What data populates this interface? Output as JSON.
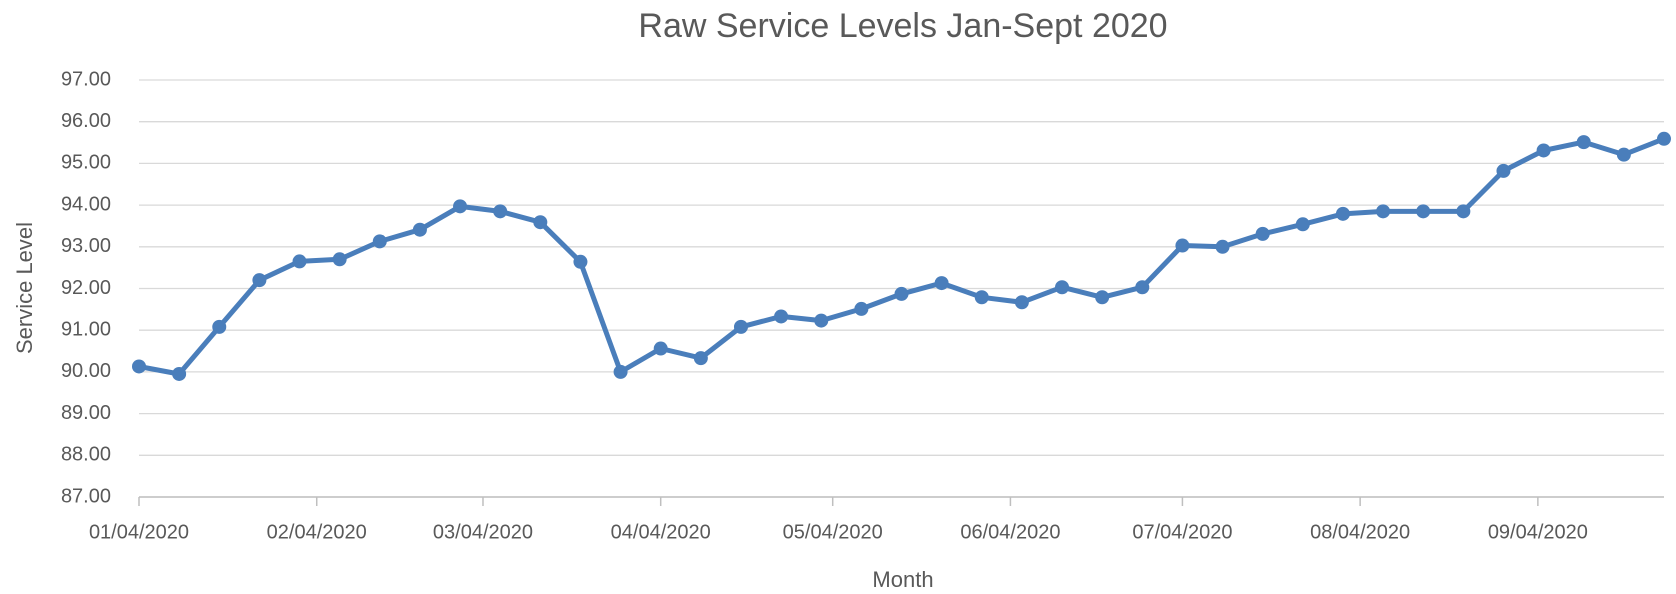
{
  "chart_data": {
    "type": "line",
    "title": "Raw Service Levels Jan-Sept 2020",
    "x_label": "Month",
    "y_label": "Service Level",
    "x": [
      "2020-01-04",
      "2020-01-11",
      "2020-01-18",
      "2020-01-25",
      "2020-02-01",
      "2020-02-08",
      "2020-02-15",
      "2020-02-22",
      "2020-02-29",
      "2020-03-07",
      "2020-03-14",
      "2020-03-21",
      "2020-03-28",
      "2020-04-04",
      "2020-04-11",
      "2020-04-18",
      "2020-04-25",
      "2020-05-02",
      "2020-05-09",
      "2020-05-16",
      "2020-05-23",
      "2020-05-30",
      "2020-06-06",
      "2020-06-13",
      "2020-06-20",
      "2020-06-27",
      "2020-07-04",
      "2020-07-11",
      "2020-07-18",
      "2020-07-25",
      "2020-08-01",
      "2020-08-08",
      "2020-08-15",
      "2020-08-22",
      "2020-08-29",
      "2020-09-05",
      "2020-09-12",
      "2020-09-19",
      "2020-09-26"
    ],
    "values": [
      90.13,
      89.95,
      91.08,
      92.2,
      92.65,
      92.7,
      93.13,
      93.41,
      93.97,
      93.85,
      93.59,
      92.64,
      90.0,
      90.56,
      90.33,
      91.08,
      91.33,
      91.23,
      91.51,
      91.87,
      92.13,
      91.79,
      91.67,
      92.03,
      91.79,
      92.03,
      93.03,
      93.0,
      93.31,
      93.54,
      93.79,
      93.85,
      93.85,
      93.85,
      94.82,
      95.31,
      95.51,
      95.21,
      95.59
    ],
    "color": "#4a7ebb",
    "xlim": [
      "2020-01-04",
      "2020-09-26"
    ],
    "xticks": [
      {
        "value": "2020-01-04",
        "label": "01/04/2020"
      },
      {
        "value": "2020-02-04",
        "label": "02/04/2020"
      },
      {
        "value": "2020-03-04",
        "label": "03/04/2020"
      },
      {
        "value": "2020-04-04",
        "label": "04/04/2020"
      },
      {
        "value": "2020-05-04",
        "label": "05/04/2020"
      },
      {
        "value": "2020-06-04",
        "label": "06/04/2020"
      },
      {
        "value": "2020-07-04",
        "label": "07/04/2020"
      },
      {
        "value": "2020-08-04",
        "label": "08/04/2020"
      },
      {
        "value": "2020-09-04",
        "label": "09/04/2020"
      }
    ],
    "ylim": [
      87,
      97
    ],
    "yticks": [
      {
        "value": 87,
        "label": "87.00"
      },
      {
        "value": 88,
        "label": "88.00"
      },
      {
        "value": 89,
        "label": "89.00"
      },
      {
        "value": 90,
        "label": "90.00"
      },
      {
        "value": 91,
        "label": "91.00"
      },
      {
        "value": 92,
        "label": "92.00"
      },
      {
        "value": 93,
        "label": "93.00"
      },
      {
        "value": 94,
        "label": "94.00"
      },
      {
        "value": 95,
        "label": "95.00"
      },
      {
        "value": 96,
        "label": "96.00"
      },
      {
        "value": 97,
        "label": "97.00"
      }
    ],
    "grid": true
  }
}
